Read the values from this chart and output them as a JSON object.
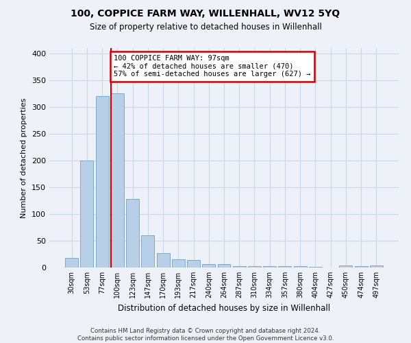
{
  "title": "100, COPPICE FARM WAY, WILLENHALL, WV12 5YQ",
  "subtitle": "Size of property relative to detached houses in Willenhall",
  "xlabel": "Distribution of detached houses by size in Willenhall",
  "ylabel": "Number of detached properties",
  "categories": [
    "30sqm",
    "53sqm",
    "77sqm",
    "100sqm",
    "123sqm",
    "147sqm",
    "170sqm",
    "193sqm",
    "217sqm",
    "240sqm",
    "264sqm",
    "287sqm",
    "310sqm",
    "334sqm",
    "357sqm",
    "380sqm",
    "404sqm",
    "427sqm",
    "450sqm",
    "474sqm",
    "497sqm"
  ],
  "values": [
    18,
    200,
    320,
    325,
    128,
    60,
    27,
    15,
    14,
    7,
    6,
    3,
    3,
    2,
    3,
    2,
    1,
    0,
    4,
    2,
    4
  ],
  "bar_color": "#b8cfe8",
  "bar_edge_color": "#7aaacf",
  "grid_color": "#c8d8ea",
  "background_color": "#eef2f8",
  "property_size_bin_index": 3,
  "annotation_text": "100 COPPICE FARM WAY: 97sqm\n← 42% of detached houses are smaller (470)\n57% of semi-detached houses are larger (627) →",
  "annotation_box_color": "#ffffff",
  "annotation_border_color": "#cc0000",
  "vline_color": "#cc0000",
  "footer": "Contains HM Land Registry data © Crown copyright and database right 2024.\nContains public sector information licensed under the Open Government Licence v3.0.",
  "ylim": [
    0,
    410
  ],
  "yticks": [
    0,
    50,
    100,
    150,
    200,
    250,
    300,
    350,
    400
  ]
}
